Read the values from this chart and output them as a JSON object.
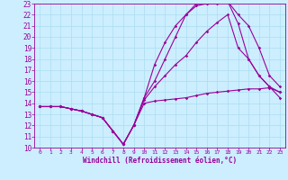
{
  "title": "",
  "xlabel": "Windchill (Refroidissement éolien,°C)",
  "ylabel": "",
  "bg_color": "#cceeff",
  "line_color": "#990099",
  "grid_color": "#aaddee",
  "xlim": [
    -0.5,
    23.5
  ],
  "ylim": [
    10,
    23
  ],
  "xticks": [
    0,
    1,
    2,
    3,
    4,
    5,
    6,
    7,
    8,
    9,
    10,
    11,
    12,
    13,
    14,
    15,
    16,
    17,
    18,
    19,
    20,
    21,
    22,
    23
  ],
  "yticks": [
    10,
    11,
    12,
    13,
    14,
    15,
    16,
    17,
    18,
    19,
    20,
    21,
    22,
    23
  ],
  "lines": [
    {
      "x": [
        0,
        1,
        2,
        3,
        4,
        5,
        6,
        7,
        8,
        9,
        10,
        11,
        12,
        13,
        14,
        15,
        16,
        17,
        18,
        19,
        20,
        21,
        22,
        23
      ],
      "y": [
        13.7,
        13.7,
        13.7,
        13.5,
        13.3,
        13.0,
        12.7,
        11.5,
        10.3,
        12.0,
        14.0,
        14.2,
        14.3,
        14.4,
        14.5,
        14.7,
        14.9,
        15.0,
        15.1,
        15.2,
        15.3,
        15.3,
        15.4,
        15.0
      ]
    },
    {
      "x": [
        0,
        1,
        2,
        3,
        4,
        5,
        6,
        7,
        8,
        9,
        10,
        11,
        12,
        13,
        14,
        15,
        16,
        17,
        18,
        19,
        20,
        21,
        22,
        23
      ],
      "y": [
        13.7,
        13.7,
        13.7,
        13.5,
        13.3,
        13.0,
        12.7,
        11.5,
        10.3,
        12.0,
        14.3,
        15.5,
        16.5,
        17.5,
        18.3,
        19.5,
        20.5,
        21.3,
        22.0,
        19.0,
        18.0,
        16.5,
        15.5,
        15.0
      ]
    },
    {
      "x": [
        0,
        1,
        2,
        3,
        4,
        5,
        6,
        7,
        8,
        9,
        10,
        11,
        12,
        13,
        14,
        15,
        16,
        17,
        18,
        19,
        20,
        21,
        22,
        23
      ],
      "y": [
        13.7,
        13.7,
        13.7,
        13.5,
        13.3,
        13.0,
        12.7,
        11.5,
        10.3,
        12.0,
        14.5,
        17.5,
        19.5,
        21.0,
        22.0,
        22.8,
        23.0,
        23.0,
        23.2,
        22.0,
        21.0,
        19.0,
        16.5,
        15.5
      ]
    },
    {
      "x": [
        0,
        1,
        2,
        3,
        4,
        5,
        6,
        7,
        8,
        9,
        10,
        11,
        12,
        13,
        14,
        15,
        16,
        17,
        18,
        19,
        20,
        21,
        22,
        23
      ],
      "y": [
        13.7,
        13.7,
        13.7,
        13.5,
        13.3,
        13.0,
        12.7,
        11.5,
        10.3,
        12.0,
        14.5,
        16.0,
        18.0,
        20.0,
        22.0,
        23.0,
        23.0,
        23.2,
        23.2,
        21.2,
        18.0,
        16.5,
        15.5,
        14.5
      ]
    }
  ]
}
